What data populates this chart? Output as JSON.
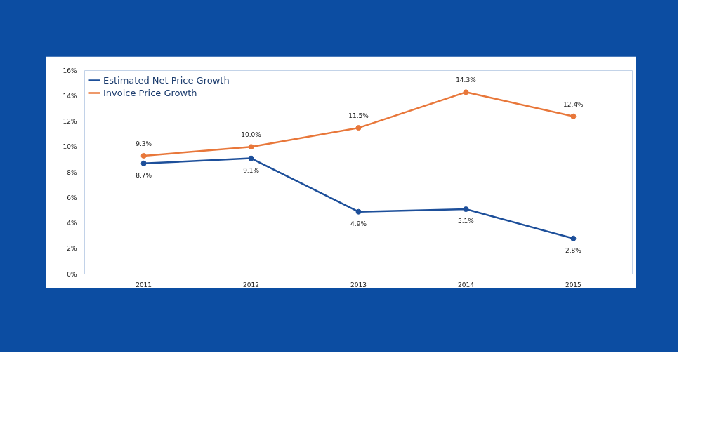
{
  "chart_data": {
    "type": "line",
    "categories": [
      "2011",
      "2012",
      "2013",
      "2014",
      "2015"
    ],
    "series": [
      {
        "name": "Estimated Net Price Growth",
        "color": "#1d4f9a",
        "values": [
          8.7,
          9.1,
          4.9,
          5.1,
          2.8
        ],
        "value_labels": [
          "8.7%",
          "9.1%",
          "4.9%",
          "5.1%",
          "2.8%"
        ]
      },
      {
        "name": "Invoice Price Growth",
        "color": "#e8773a",
        "values": [
          9.3,
          10.0,
          11.5,
          14.3,
          12.4
        ],
        "value_labels": [
          "9.3%",
          "10.0%",
          "11.5%",
          "14.3%",
          "12.4%"
        ]
      }
    ],
    "ylim": [
      0,
      16
    ],
    "yticks": [
      {
        "value": 0,
        "label": "0%"
      },
      {
        "value": 2,
        "label": "2%"
      },
      {
        "value": 4,
        "label": "4%"
      },
      {
        "value": 6,
        "label": "6%"
      },
      {
        "value": 8,
        "label": "8%"
      },
      {
        "value": 10,
        "label": "10%"
      },
      {
        "value": 12,
        "label": "12%"
      },
      {
        "value": 14,
        "label": "14%"
      },
      {
        "value": 16,
        "label": "16%"
      }
    ],
    "marker": "circle",
    "line_style": "solid",
    "grid": false,
    "legend": "top left"
  }
}
